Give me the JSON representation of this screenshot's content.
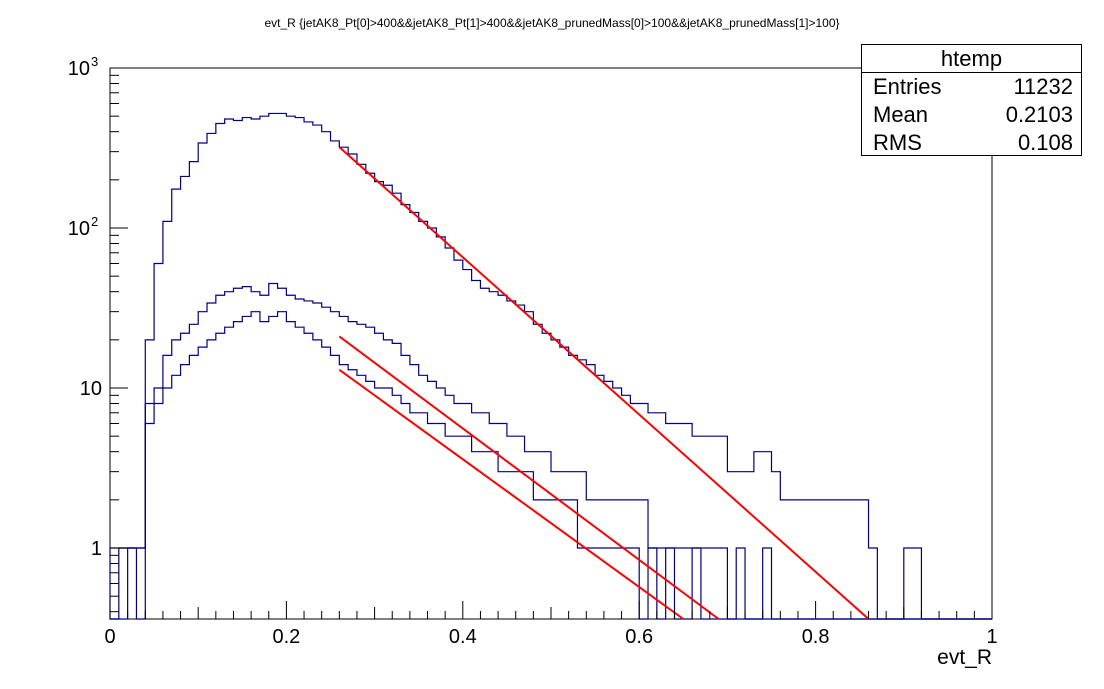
{
  "chart_data": {
    "type": "histogram",
    "title": "evt_R {jetAK8_Pt[0]>400&&jetAK8_Pt[1]>400&&jetAK8_prunedMass[0]>100&&jetAK8_prunedMass[1]>100}",
    "xlabel": "evt_R",
    "ylabel": "",
    "xlim": [
      0,
      1
    ],
    "ylim": [
      0.36,
      1000
    ],
    "yscale": "log",
    "x_ticks": [
      "0",
      "0.2",
      "0.4",
      "0.6",
      "0.8",
      "1"
    ],
    "y_ticks": [
      "1",
      "10",
      "10^2",
      "10^3"
    ],
    "bin_width": 0.01,
    "series": [
      {
        "color": "#000080",
        "style": "step",
        "values": [
          1,
          1,
          1,
          1,
          20,
          60,
          110,
          175,
          210,
          260,
          340,
          390,
          450,
          480,
          470,
          490,
          480,
          500,
          520,
          520,
          500,
          490,
          460,
          440,
          400,
          350,
          320,
          290,
          250,
          220,
          195,
          185,
          165,
          140,
          125,
          110,
          100,
          88,
          75,
          63,
          55,
          47,
          42,
          40,
          38,
          35,
          33,
          30,
          25,
          22,
          20,
          18,
          16,
          15,
          14,
          12,
          11,
          10,
          9,
          8,
          8,
          7,
          7,
          6,
          6,
          6,
          5,
          5,
          5,
          5,
          3,
          3,
          3,
          4,
          4,
          3,
          2,
          2,
          2,
          2,
          2,
          2,
          2,
          2,
          2,
          2,
          1,
          0,
          0,
          0,
          1,
          1,
          0,
          0,
          0,
          0,
          0,
          0,
          0,
          0
        ]
      },
      {
        "color": "#000080",
        "style": "step",
        "values": [
          0,
          1,
          1,
          0,
          8,
          10,
          16,
          20,
          22,
          25,
          30,
          34,
          38,
          40,
          42,
          43,
          40,
          38,
          45,
          42,
          38,
          36,
          35,
          34,
          32,
          30,
          28,
          26,
          25,
          24,
          22,
          20,
          19,
          16,
          14,
          12,
          11,
          10,
          9,
          8,
          8,
          7,
          7,
          6,
          6,
          5,
          5,
          4,
          4,
          4,
          3,
          3,
          3,
          3,
          2,
          2,
          2,
          2,
          2,
          2,
          2,
          1,
          1,
          1,
          1,
          1,
          1,
          1,
          1,
          1,
          0,
          1,
          0,
          0,
          1,
          0,
          0,
          0,
          0,
          0,
          0,
          0,
          0,
          0,
          0,
          0,
          0,
          0,
          0,
          0,
          0,
          0,
          0,
          0,
          0,
          0,
          0,
          0,
          0,
          0
        ]
      },
      {
        "color": "#000080",
        "style": "step",
        "values": [
          0,
          0,
          1,
          1,
          6,
          8,
          10,
          12,
          14,
          16,
          18,
          20,
          22,
          24,
          26,
          28,
          30,
          26,
          28,
          30,
          26,
          24,
          22,
          20,
          18,
          16,
          14,
          13,
          12,
          11,
          10,
          10,
          9,
          8,
          7,
          7,
          6,
          6,
          5,
          5,
          5,
          4,
          4,
          4,
          3,
          3,
          3,
          3,
          2,
          2,
          2,
          2,
          2,
          1,
          1,
          1,
          1,
          1,
          1,
          1,
          0,
          1,
          0,
          1,
          0,
          0,
          1,
          0,
          0,
          0,
          0,
          0,
          0,
          0,
          0,
          0,
          0,
          0,
          0,
          0,
          0,
          0,
          0,
          0,
          0,
          0,
          0,
          0,
          0,
          0,
          0,
          0,
          0,
          0,
          0,
          0,
          0,
          0,
          0,
          0
        ]
      },
      {
        "color": "#ff0000",
        "style": "fit",
        "x": [
          0.26,
          0.86
        ],
        "y": [
          320,
          0.36
        ]
      },
      {
        "color": "#ff0000",
        "style": "fit",
        "x": [
          0.26,
          0.69
        ],
        "y": [
          21,
          0.36
        ]
      },
      {
        "color": "#ff0000",
        "style": "fit",
        "x": [
          0.26,
          0.65
        ],
        "y": [
          13,
          0.36
        ]
      }
    ]
  },
  "stats": {
    "title": "htemp",
    "rows": [
      {
        "label": "Entries",
        "value": "11232"
      },
      {
        "label": "Mean",
        "value": "0.2103"
      },
      {
        "label": "RMS",
        "value": "0.108"
      }
    ]
  }
}
